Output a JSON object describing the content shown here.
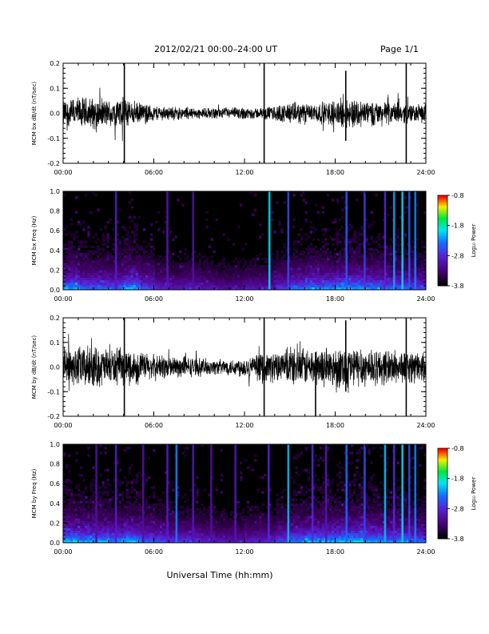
{
  "header": {
    "date_range": "2012/02/21  00:00–24:00 UT",
    "page": "Page 1/1"
  },
  "xlabel": "Universal Time (hh:mm)",
  "colorbar_label": "Log₁₀ Power",
  "chart_data": [
    {
      "type": "line",
      "ylabel": "MCM bx dB/dt (nT/sec)",
      "xticks": [
        "00:00",
        "06:00",
        "12:00",
        "18:00",
        "24:00"
      ],
      "xlim": [
        0,
        24
      ],
      "ylim": [
        -0.2,
        0.2
      ],
      "yticks": [
        "-0.2",
        "-0.1",
        "0.0",
        "0.1",
        "0.2"
      ],
      "envelope": {
        "hours": [
          0,
          1,
          2,
          3,
          4,
          5,
          6,
          7,
          8,
          9,
          10,
          11,
          12,
          13,
          14,
          15,
          16,
          17,
          18,
          19,
          20,
          21,
          22,
          23,
          24
        ],
        "amplitude": [
          0.05,
          0.06,
          0.06,
          0.05,
          0.06,
          0.04,
          0.03,
          0.025,
          0.025,
          0.02,
          0.02,
          0.02,
          0.025,
          0.02,
          0.03,
          0.04,
          0.04,
          0.04,
          0.05,
          0.06,
          0.05,
          0.045,
          0.04,
          0.035,
          0.035
        ]
      },
      "spikes": [
        {
          "time": 4.05,
          "min": -0.21,
          "max": 0.21
        },
        {
          "time": 13.3,
          "min": -0.21,
          "max": 0.21
        },
        {
          "time": 22.7,
          "min": -0.21,
          "max": 0.21
        },
        {
          "time": 18.7,
          "min": -0.11,
          "max": 0.17
        }
      ]
    },
    {
      "type": "heatmap",
      "ylabel": "MCM bx Freq (Hz)",
      "xticks": [
        "00:00",
        "06:00",
        "12:00",
        "18:00",
        "24:00"
      ],
      "xlim": [
        0,
        24
      ],
      "ylim": [
        0,
        1.0
      ],
      "yticks": [
        "0.0",
        "0.2",
        "0.4",
        "0.6",
        "0.8",
        "1.0"
      ],
      "zlim": [
        -3.8,
        -0.8
      ],
      "colorbar_ticks": [
        "-0.8",
        "-1.8",
        "-2.8",
        "-3.8"
      ],
      "activity": [
        0.6,
        0.5,
        0.5,
        0.5,
        0.6,
        0.45,
        0.35,
        0.3,
        0.35,
        0.3,
        0.25,
        0.25,
        0.3,
        0.3,
        0.4,
        0.5,
        0.55,
        0.55,
        0.6,
        0.6,
        0.55,
        0.5,
        0.5,
        0.45,
        0.45
      ],
      "bands": [
        {
          "time": 3.5,
          "level": -2.9
        },
        {
          "time": 6.9,
          "level": -3.0
        },
        {
          "time": 8.6,
          "level": -3.1
        },
        {
          "time": 13.65,
          "level": -2.0
        },
        {
          "time": 14.9,
          "level": -2.6
        },
        {
          "time": 18.75,
          "level": -2.5
        },
        {
          "time": 19.95,
          "level": -2.7
        },
        {
          "time": 21.3,
          "level": -2.8
        },
        {
          "time": 21.9,
          "level": -2.2
        },
        {
          "time": 22.45,
          "level": -2.0
        },
        {
          "time": 22.9,
          "level": -2.5
        },
        {
          "time": 23.3,
          "level": -2.3
        }
      ]
    },
    {
      "type": "line",
      "ylabel": "MCM by dB/dt (nT/sec)",
      "xticks": [
        "00:00",
        "06:00",
        "12:00",
        "18:00",
        "24:00"
      ],
      "xlim": [
        0,
        24
      ],
      "ylim": [
        -0.2,
        0.2
      ],
      "yticks": [
        "-0.2",
        "-0.1",
        "0.0",
        "0.1",
        "0.2"
      ],
      "envelope": {
        "hours": [
          0,
          1,
          2,
          3,
          4,
          5,
          6,
          7,
          8,
          9,
          10,
          11,
          12,
          13,
          14,
          15,
          16,
          17,
          18,
          19,
          20,
          21,
          22,
          23,
          24
        ],
        "amplitude": [
          0.06,
          0.08,
          0.08,
          0.07,
          0.07,
          0.06,
          0.05,
          0.045,
          0.04,
          0.035,
          0.03,
          0.03,
          0.04,
          0.05,
          0.06,
          0.07,
          0.07,
          0.07,
          0.08,
          0.08,
          0.075,
          0.07,
          0.065,
          0.06,
          0.05
        ]
      },
      "spikes": [
        {
          "time": 4.05,
          "min": -0.21,
          "max": 0.21
        },
        {
          "time": 13.3,
          "min": -0.21,
          "max": 0.21
        },
        {
          "time": 16.7,
          "min": -0.21,
          "max": 0.06
        },
        {
          "time": 22.7,
          "min": -0.21,
          "max": 0.21
        },
        {
          "time": 18.7,
          "min": -0.1,
          "max": 0.19
        }
      ]
    },
    {
      "type": "heatmap",
      "ylabel": "MCM by Freq (Hz)",
      "xticks": [
        "00:00",
        "06:00",
        "12:00",
        "18:00",
        "24:00"
      ],
      "xlim": [
        0,
        24
      ],
      "ylim": [
        0,
        1.0
      ],
      "yticks": [
        "0.0",
        "0.2",
        "0.4",
        "0.6",
        "0.8",
        "1.0"
      ],
      "zlim": [
        -3.8,
        -0.8
      ],
      "colorbar_ticks": [
        "-0.8",
        "-1.8",
        "-2.8",
        "-3.8"
      ],
      "activity": [
        0.65,
        0.6,
        0.6,
        0.55,
        0.6,
        0.5,
        0.45,
        0.4,
        0.4,
        0.35,
        0.3,
        0.3,
        0.35,
        0.35,
        0.45,
        0.55,
        0.6,
        0.6,
        0.65,
        0.65,
        0.6,
        0.55,
        0.55,
        0.5,
        0.5
      ],
      "bands": [
        {
          "time": 2.2,
          "level": -3.1
        },
        {
          "time": 3.5,
          "level": -2.9
        },
        {
          "time": 5.3,
          "level": -3.1
        },
        {
          "time": 6.9,
          "level": -2.9
        },
        {
          "time": 7.5,
          "level": -2.3
        },
        {
          "time": 8.6,
          "level": -3.0
        },
        {
          "time": 9.8,
          "level": -3.1
        },
        {
          "time": 11.4,
          "level": -3.0
        },
        {
          "time": 13.6,
          "level": -2.8
        },
        {
          "time": 14.9,
          "level": -2.1
        },
        {
          "time": 16.5,
          "level": -2.8
        },
        {
          "time": 17.4,
          "level": -3.0
        },
        {
          "time": 18.75,
          "level": -2.4
        },
        {
          "time": 19.95,
          "level": -2.6
        },
        {
          "time": 21.3,
          "level": -2.1
        },
        {
          "time": 21.9,
          "level": -2.8
        },
        {
          "time": 22.45,
          "level": -2.0
        },
        {
          "time": 22.9,
          "level": -2.6
        },
        {
          "time": 23.3,
          "level": -2.3
        }
      ]
    }
  ]
}
